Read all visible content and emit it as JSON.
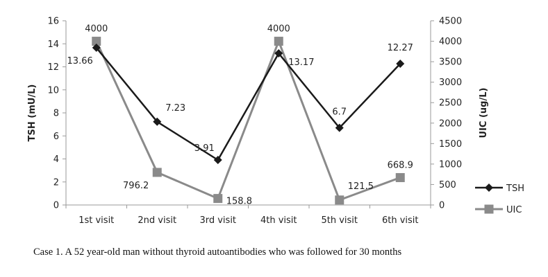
{
  "caption": "Case 1. A 52 year-old man without thyroid autoantibodies who was followed for 30 months",
  "chart_data": {
    "type": "line",
    "categories": [
      "1st visit",
      "2nd visit",
      "3rd visit",
      "4th visit",
      "5th visit",
      "6th visit"
    ],
    "ylabel_left": "TSH (mU/L)",
    "ylabel_right": "UIC (ug/L)",
    "ylim_left": [
      0,
      16
    ],
    "yticks_left": [
      "0",
      "2",
      "4",
      "6",
      "8",
      "10",
      "12",
      "14",
      "16"
    ],
    "ylim_right": [
      0,
      4500
    ],
    "yticks_right": [
      "0",
      "500",
      "1000",
      "1500",
      "2000",
      "2500",
      "3000",
      "3500",
      "4000",
      "4500"
    ],
    "grid": false,
    "legend_position": "right",
    "series": [
      {
        "name": "TSH",
        "axis": "left",
        "marker": "diamond",
        "color": "#1a1a1a",
        "values": [
          13.66,
          7.23,
          3.91,
          13.17,
          6.7,
          12.27
        ],
        "labels": [
          "13.66",
          "7.23",
          "3.91",
          "13.17",
          "6.7",
          "12.27"
        ]
      },
      {
        "name": "UIC",
        "axis": "right",
        "marker": "square",
        "color": "#8a8a8a",
        "values": [
          4000,
          796.2,
          158.8,
          4000,
          121.5,
          668.9
        ],
        "labels": [
          "4000",
          "796.2",
          "158.8",
          "4000",
          "121.5",
          "668.9"
        ]
      }
    ]
  }
}
